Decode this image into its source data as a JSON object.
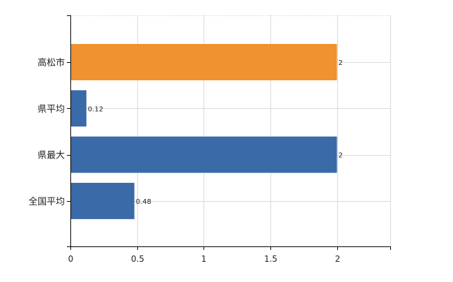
{
  "chart_data": {
    "type": "bar",
    "orientation": "horizontal",
    "categories": [
      "高松市",
      "県平均",
      "県最大",
      "全国平均"
    ],
    "values": [
      2,
      0.12,
      2,
      0.48
    ],
    "data_labels": [
      "2",
      "0.12",
      "2",
      "0.48"
    ],
    "bar_colors": [
      "#f0922f",
      "#3a6aa8",
      "#3a6aa8",
      "#3a6aa8"
    ],
    "xlim": [
      0,
      2.4
    ],
    "x_ticks": [
      0,
      0.5,
      1,
      1.5,
      2
    ],
    "x_tick_labels": [
      "0",
      "0.5",
      "1",
      "1.5",
      "2"
    ],
    "grid": true,
    "legend": "none"
  }
}
